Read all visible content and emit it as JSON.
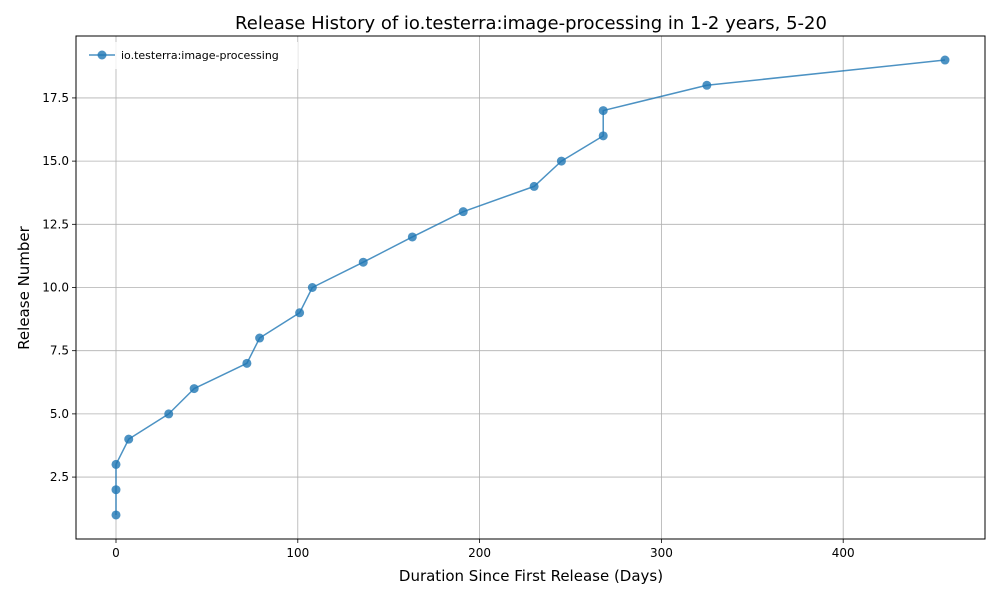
{
  "chart_data": {
    "type": "line",
    "title": "Release History of io.testerra:image-processing in 1-2 years, 5-20",
    "xlabel": "Duration Since First Release (Days)",
    "ylabel": "Release Number",
    "xlim": [
      -22,
      478
    ],
    "ylim": [
      0.05,
      19.95
    ],
    "xticks": [
      0,
      100,
      200,
      300,
      400
    ],
    "yticks": [
      2.5,
      5.0,
      7.5,
      10.0,
      12.5,
      15.0,
      17.5
    ],
    "ytick_labels": [
      "2.5",
      "5.0",
      "7.5",
      "10.0",
      "12.5",
      "15.0",
      "17.5"
    ],
    "grid": true,
    "legend_position": "top-left",
    "series": [
      {
        "name": "io.testerra:image-processing",
        "color": "#1f77b4",
        "x": [
          0,
          0,
          0,
          7,
          29,
          43,
          72,
          79,
          101,
          108,
          136,
          163,
          191,
          230,
          245,
          268,
          268,
          325,
          456
        ],
        "y": [
          1,
          2,
          3,
          4,
          5,
          6,
          7,
          8,
          9,
          10,
          11,
          12,
          13,
          14,
          15,
          16,
          17,
          18,
          19
        ]
      }
    ]
  }
}
